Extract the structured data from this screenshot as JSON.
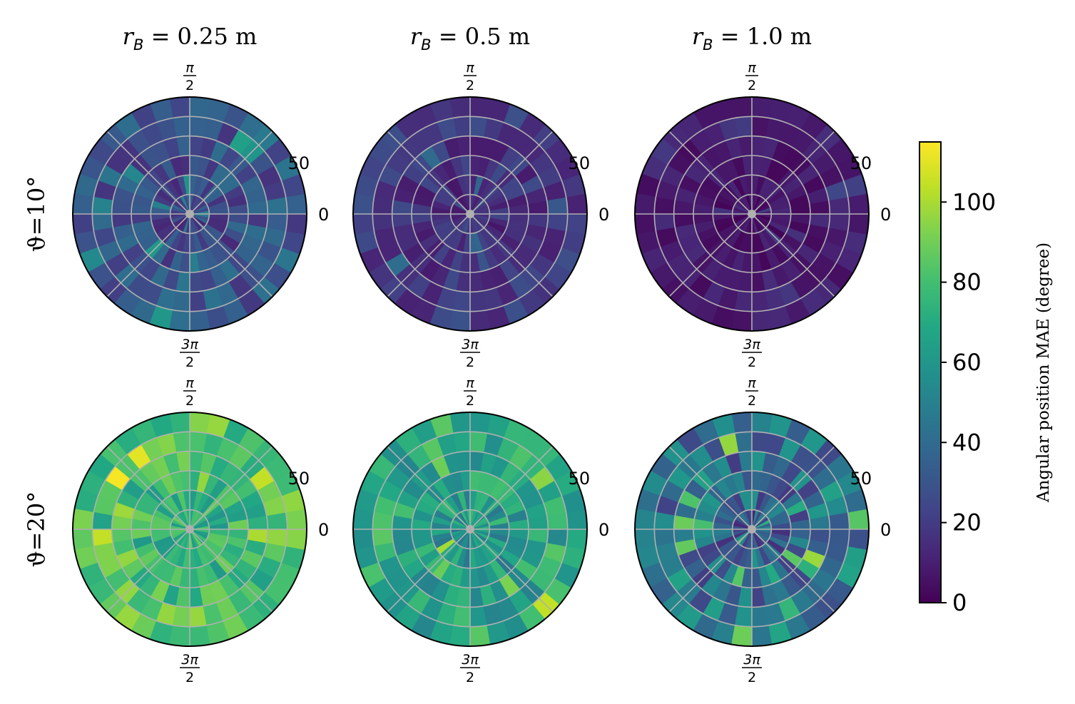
{
  "chart_data": {
    "type": "heatmap",
    "subtype": "polar-grid",
    "column_titles": [
      {
        "main": "r",
        "sub": "B",
        "rest": " = 0.25 m"
      },
      {
        "main": "r",
        "sub": "B",
        "rest": " = 0.5 m"
      },
      {
        "main": "r",
        "sub": "B",
        "rest": " = 1.0 m"
      }
    ],
    "row_titles": [
      "ϑ=10°",
      "ϑ=20°"
    ],
    "polar_axis": {
      "radial_max": 60,
      "radial_rings": [
        10,
        20,
        30,
        40,
        50
      ],
      "radial_tick_label": "50",
      "angular_ticks": [
        {
          "angle_deg": 0,
          "label": "0"
        },
        {
          "angle_deg": 90,
          "num": "π",
          "den": "2"
        },
        {
          "angle_deg": 270,
          "num": "3π",
          "den": "2"
        }
      ],
      "angular_gridlines_deg": [
        0,
        45,
        90,
        135,
        180,
        225,
        270,
        315
      ],
      "sectors": 36,
      "rings": 6,
      "grid_color": "#b0b0b0"
    },
    "panels": [
      {
        "row": 0,
        "col": 0,
        "mean_mae": 28,
        "spread": 14
      },
      {
        "row": 0,
        "col": 1,
        "mean_mae": 17,
        "spread": 9
      },
      {
        "row": 0,
        "col": 2,
        "mean_mae": 8,
        "spread": 6
      },
      {
        "row": 1,
        "col": 0,
        "mean_mae": 78,
        "spread": 16
      },
      {
        "row": 1,
        "col": 1,
        "mean_mae": 65,
        "spread": 18
      },
      {
        "row": 1,
        "col": 2,
        "mean_mae": 40,
        "spread": 22
      }
    ],
    "colorbar": {
      "label": "Angular position MAE (degree)",
      "vmin": 0,
      "vmax": 115,
      "ticks": [
        0,
        20,
        40,
        60,
        80,
        100
      ],
      "colormap": "viridis"
    }
  }
}
